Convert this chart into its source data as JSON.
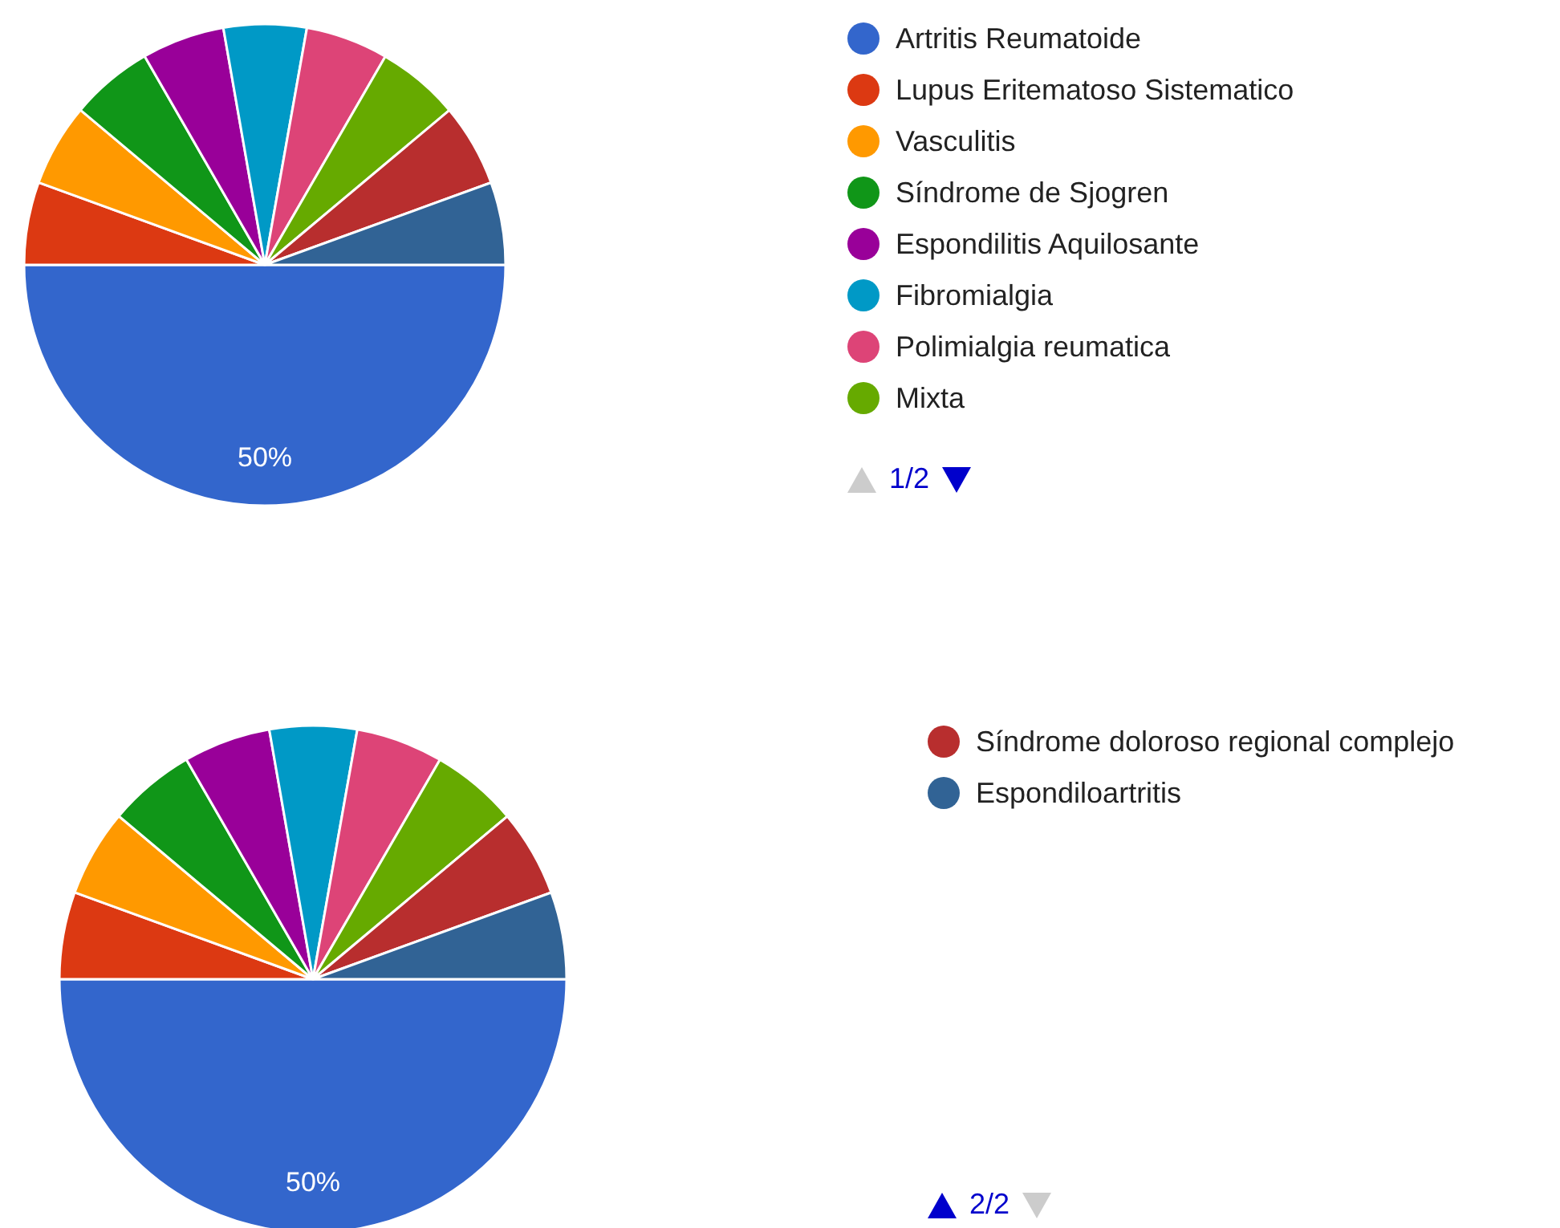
{
  "chart_data": [
    {
      "type": "pie",
      "categories": [
        "Artritis Reumatoide",
        "Lupus Eritematoso Sistematico",
        "Vasculitis",
        "Síndrome de Sjogren",
        "Espondilitis Aquilosante",
        "Fibromialgia",
        "Polimialgia reumatica",
        "Mixta",
        null,
        null
      ],
      "values": [
        50,
        5.56,
        5.56,
        5.56,
        5.56,
        5.56,
        5.55,
        5.55,
        5.55,
        5.55
      ],
      "colors": [
        "#3366cc",
        "#dc3912",
        "#ff9900",
        "#109618",
        "#990099",
        "#0099c6",
        "#dd4477",
        "#66aa00",
        "#b82e2e",
        "#316395"
      ],
      "value_labels": [
        "50%",
        null,
        null,
        null,
        null,
        null,
        null,
        null,
        null,
        null
      ],
      "legend": "right",
      "annotations": [
        "1/2"
      ]
    },
    {
      "type": "pie",
      "categories": [
        null,
        null,
        null,
        null,
        null,
        null,
        null,
        null,
        "Síndrome doloroso regional complejo",
        "Espondiloartritis"
      ],
      "values": [
        50,
        5.56,
        5.56,
        5.56,
        5.56,
        5.56,
        5.55,
        5.55,
        5.55,
        5.55
      ],
      "colors": [
        "#3366cc",
        "#dc3912",
        "#ff9900",
        "#109618",
        "#990099",
        "#0099c6",
        "#dd4477",
        "#66aa00",
        "#b82e2e",
        "#316395"
      ],
      "value_labels": [
        "50%",
        null,
        null,
        null,
        null,
        null,
        null,
        null,
        null,
        null
      ],
      "legend": "right",
      "annotations": [
        "2/2"
      ]
    }
  ]
}
